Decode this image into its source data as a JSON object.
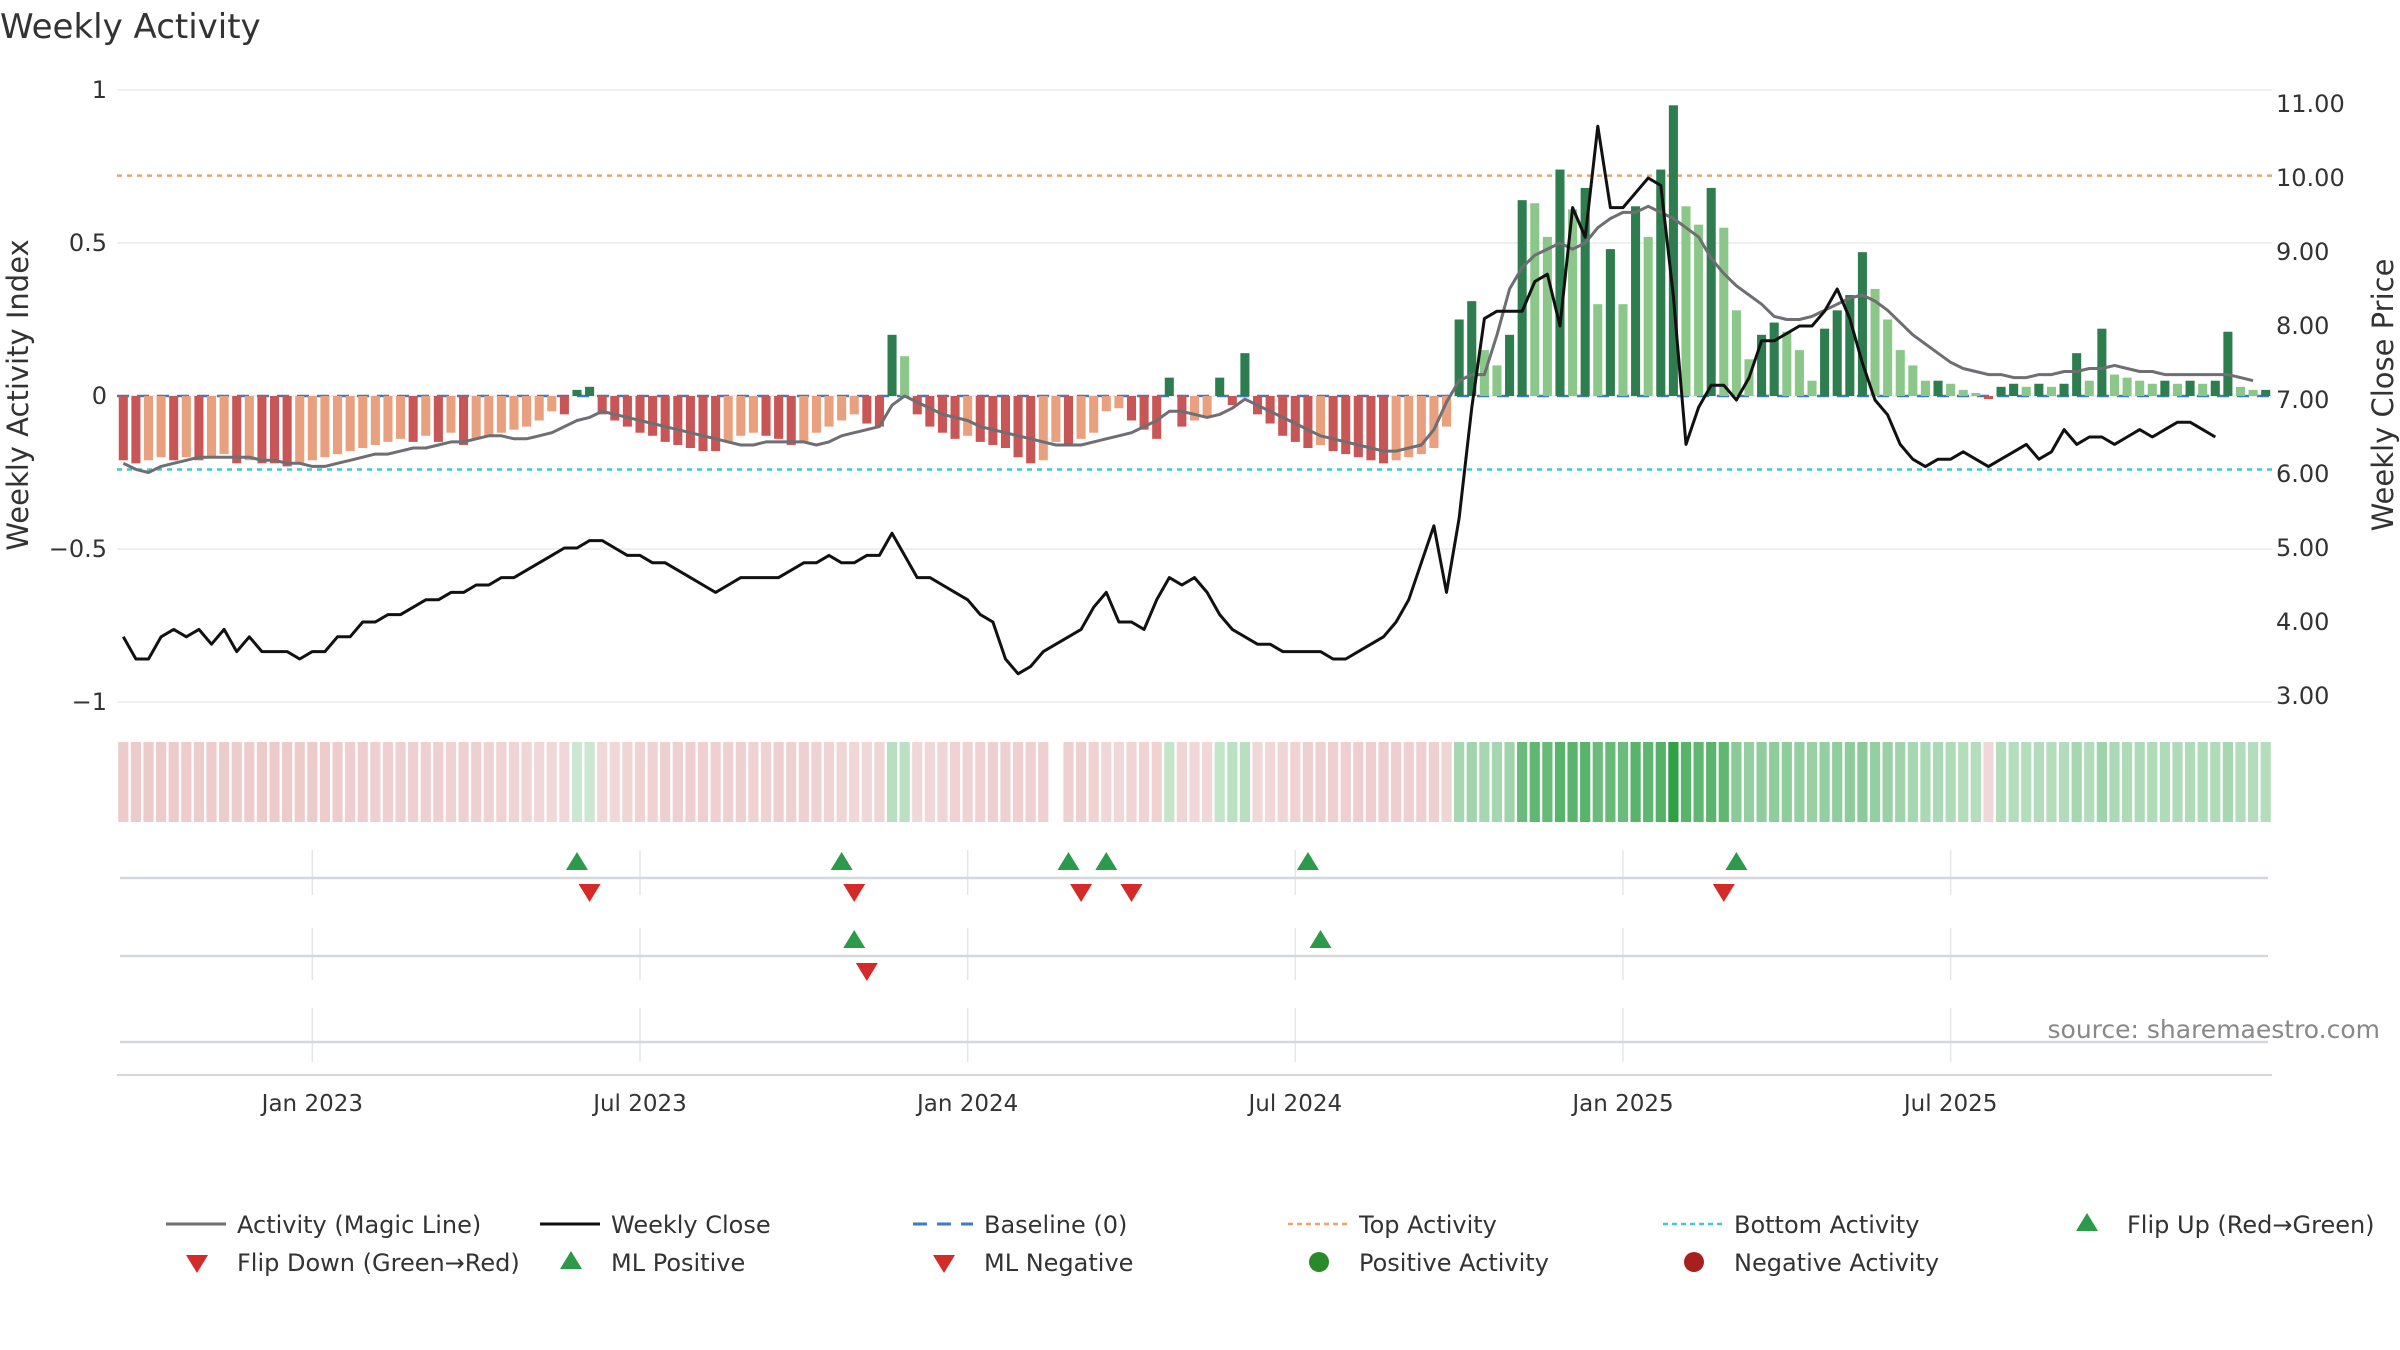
{
  "chart_data": {
    "type": "bar",
    "title": "Weekly Activity",
    "ylabel": "Weekly Activity Index",
    "y2label": "Weekly Close Price",
    "source": "source: sharemaestro.com",
    "ylim": [
      -1,
      1
    ],
    "y2lim": [
      3.0,
      11.0
    ],
    "y_ticks": [
      {
        "value": 1,
        "label": "1"
      },
      {
        "value": 0.5,
        "label": "0.5"
      },
      {
        "value": 0,
        "label": "0"
      },
      {
        "value": -0.5,
        "label": "−0.5"
      },
      {
        "value": -1,
        "label": "−1"
      }
    ],
    "y2_ticks": [
      "3.00",
      "4.00",
      "5.00",
      "6.00",
      "7.00",
      "8.00",
      "9.00",
      "10.00",
      "11.00"
    ],
    "x_ticks": [
      {
        "week": 15,
        "label": "Jan 2023"
      },
      {
        "week": 41,
        "label": "Jul 2023"
      },
      {
        "week": 67,
        "label": "Jan 2024"
      },
      {
        "week": 93,
        "label": "Jul 2024"
      },
      {
        "week": 119,
        "label": "Jan 2025"
      },
      {
        "week": 145,
        "label": "Jul 2025"
      }
    ],
    "top_activity": 0.72,
    "bottom_activity": -0.24,
    "baseline": 0,
    "activity": [
      -0.21,
      -0.22,
      -0.21,
      -0.2,
      -0.21,
      -0.2,
      -0.21,
      -0.2,
      -0.19,
      -0.22,
      -0.21,
      -0.22,
      -0.22,
      -0.23,
      -0.22,
      -0.21,
      -0.2,
      -0.19,
      -0.18,
      -0.17,
      -0.16,
      -0.15,
      -0.14,
      -0.15,
      -0.13,
      -0.15,
      -0.12,
      -0.16,
      -0.14,
      -0.13,
      -0.12,
      -0.11,
      -0.1,
      -0.08,
      -0.05,
      -0.06,
      0.02,
      0.03,
      -0.06,
      -0.08,
      -0.1,
      -0.12,
      -0.13,
      -0.15,
      -0.16,
      -0.17,
      -0.18,
      -0.18,
      -0.15,
      -0.13,
      -0.12,
      -0.13,
      -0.14,
      -0.16,
      -0.15,
      -0.12,
      -0.1,
      -0.08,
      -0.06,
      -0.09,
      -0.1,
      0.2,
      0.13,
      -0.06,
      -0.1,
      -0.12,
      -0.14,
      -0.13,
      -0.15,
      -0.16,
      -0.17,
      -0.2,
      -0.22,
      -0.21,
      -0.15,
      -0.16,
      -0.14,
      -0.12,
      -0.05,
      -0.04,
      -0.08,
      -0.11,
      -0.14,
      0.06,
      -0.1,
      -0.08,
      -0.07,
      0.06,
      -0.03,
      0.14,
      -0.06,
      -0.09,
      -0.13,
      -0.15,
      -0.17,
      -0.16,
      -0.18,
      -0.19,
      -0.2,
      -0.21,
      -0.22,
      -0.21,
      -0.2,
      -0.19,
      -0.17,
      -0.1,
      0.25,
      0.31,
      0.15,
      0.1,
      0.2,
      0.64,
      0.63,
      0.52,
      0.74,
      0.61,
      0.68,
      0.3,
      0.48,
      0.3,
      0.62,
      0.52,
      0.74,
      0.95,
      0.62,
      0.56,
      0.68,
      0.55,
      0.28,
      0.12,
      0.2,
      0.24,
      0.21,
      0.15,
      0.05,
      0.22,
      0.28,
      0.33,
      0.47,
      0.35,
      0.25,
      0.15,
      0.1,
      0.05,
      0.05,
      0.04,
      0.02,
      0.01,
      -0.01,
      0.03,
      0.04,
      0.03,
      0.04,
      0.03,
      0.04,
      0.14,
      0.05,
      0.22,
      0.07,
      0.06,
      0.05,
      0.04,
      0.05,
      0.04,
      0.05,
      0.04,
      0.05,
      0.21,
      0.03,
      0.02,
      0.02
    ],
    "magic_line": [
      -0.22,
      -0.24,
      -0.25,
      -0.23,
      -0.22,
      -0.21,
      -0.2,
      -0.2,
      -0.2,
      -0.2,
      -0.2,
      -0.21,
      -0.21,
      -0.22,
      -0.22,
      -0.23,
      -0.23,
      -0.22,
      -0.21,
      -0.2,
      -0.19,
      -0.19,
      -0.18,
      -0.17,
      -0.17,
      -0.16,
      -0.15,
      -0.15,
      -0.14,
      -0.13,
      -0.13,
      -0.14,
      -0.14,
      -0.13,
      -0.12,
      -0.1,
      -0.08,
      -0.07,
      -0.05,
      -0.06,
      -0.07,
      -0.08,
      -0.09,
      -0.1,
      -0.11,
      -0.12,
      -0.13,
      -0.14,
      -0.15,
      -0.16,
      -0.16,
      -0.15,
      -0.15,
      -0.15,
      -0.15,
      -0.16,
      -0.15,
      -0.13,
      -0.12,
      -0.11,
      -0.1,
      -0.03,
      0.0,
      -0.02,
      -0.04,
      -0.06,
      -0.07,
      -0.08,
      -0.1,
      -0.11,
      -0.12,
      -0.13,
      -0.14,
      -0.15,
      -0.16,
      -0.16,
      -0.16,
      -0.15,
      -0.14,
      -0.13,
      -0.12,
      -0.1,
      -0.08,
      -0.05,
      -0.05,
      -0.06,
      -0.07,
      -0.06,
      -0.04,
      -0.01,
      -0.03,
      -0.05,
      -0.07,
      -0.09,
      -0.11,
      -0.13,
      -0.14,
      -0.15,
      -0.16,
      -0.17,
      -0.18,
      -0.18,
      -0.17,
      -0.16,
      -0.11,
      -0.02,
      0.05,
      0.07,
      0.07,
      0.2,
      0.35,
      0.42,
      0.46,
      0.48,
      0.5,
      0.48,
      0.5,
      0.55,
      0.58,
      0.6,
      0.6,
      0.62,
      0.6,
      0.58,
      0.55,
      0.52,
      0.45,
      0.4,
      0.36,
      0.33,
      0.3,
      0.26,
      0.25,
      0.25,
      0.26,
      0.28,
      0.3,
      0.32,
      0.33,
      0.31,
      0.28,
      0.24,
      0.2,
      0.17,
      0.14,
      0.11,
      0.09,
      0.08,
      0.07,
      0.07,
      0.06,
      0.06,
      0.07,
      0.07,
      0.08,
      0.08,
      0.09,
      0.09,
      0.1,
      0.09,
      0.08,
      0.08,
      0.07,
      0.07,
      0.07,
      0.07,
      0.07,
      0.07,
      0.06,
      0.05
    ],
    "close": [
      3.8,
      3.5,
      3.5,
      3.8,
      3.9,
      3.8,
      3.9,
      3.7,
      3.9,
      3.6,
      3.8,
      3.6,
      3.6,
      3.6,
      3.5,
      3.6,
      3.6,
      3.8,
      3.8,
      4.0,
      4.0,
      4.1,
      4.1,
      4.2,
      4.3,
      4.3,
      4.4,
      4.4,
      4.5,
      4.5,
      4.6,
      4.6,
      4.7,
      4.8,
      4.9,
      5.0,
      5.0,
      5.1,
      5.1,
      5.0,
      4.9,
      4.9,
      4.8,
      4.8,
      4.7,
      4.6,
      4.5,
      4.4,
      4.5,
      4.6,
      4.6,
      4.6,
      4.6,
      4.7,
      4.8,
      4.8,
      4.9,
      4.8,
      4.8,
      4.9,
      4.9,
      5.2,
      4.9,
      4.6,
      4.6,
      4.5,
      4.4,
      4.3,
      4.1,
      4.0,
      3.5,
      3.3,
      3.4,
      3.6,
      3.7,
      3.8,
      3.9,
      4.2,
      4.4,
      4.0,
      4.0,
      3.9,
      4.3,
      4.6,
      4.5,
      4.6,
      4.4,
      4.1,
      3.9,
      3.8,
      3.7,
      3.7,
      3.6,
      3.6,
      3.6,
      3.6,
      3.5,
      3.5,
      3.6,
      3.7,
      3.8,
      4.0,
      4.3,
      4.8,
      5.3,
      4.4,
      5.4,
      6.9,
      8.1,
      8.2,
      8.2,
      8.2,
      8.6,
      8.7,
      8.0,
      9.6,
      9.2,
      10.7,
      9.6,
      9.6,
      9.8,
      10.0,
      9.9,
      8.4,
      6.4,
      6.9,
      7.2,
      7.2,
      7.0,
      7.3,
      7.8,
      7.8,
      7.9,
      8.0,
      8.0,
      8.2,
      8.5,
      8.1,
      7.5,
      7.0,
      6.8,
      6.4,
      6.2,
      6.1,
      6.2,
      6.2,
      6.3,
      6.2,
      6.1,
      6.2,
      6.3,
      6.4,
      6.2,
      6.3,
      6.6,
      6.4,
      6.5,
      6.5,
      6.4,
      6.5,
      6.6,
      6.5,
      6.6,
      6.7,
      6.7,
      6.6,
      6.5
    ],
    "strip_intensity": [
      -0.22,
      -0.23,
      -0.23,
      -0.22,
      -0.22,
      -0.21,
      -0.21,
      -0.21,
      -0.2,
      -0.21,
      -0.21,
      -0.22,
      -0.22,
      -0.22,
      -0.22,
      -0.22,
      -0.21,
      -0.2,
      -0.19,
      -0.18,
      -0.17,
      -0.16,
      -0.15,
      -0.15,
      -0.14,
      -0.15,
      -0.13,
      -0.15,
      -0.14,
      -0.13,
      -0.12,
      -0.11,
      -0.1,
      -0.08,
      -0.05,
      -0.06,
      0.03,
      0.03,
      -0.06,
      -0.08,
      -0.1,
      -0.12,
      -0.13,
      -0.14,
      -0.15,
      -0.16,
      -0.17,
      -0.17,
      -0.15,
      -0.14,
      -0.13,
      -0.13,
      -0.14,
      -0.15,
      -0.15,
      -0.13,
      -0.11,
      -0.09,
      -0.07,
      -0.08,
      -0.09,
      0.12,
      0.1,
      -0.05,
      -0.08,
      -0.1,
      -0.12,
      -0.12,
      -0.13,
      -0.14,
      -0.15,
      -0.16,
      -0.17,
      -0.17,
      0,
      -0.15,
      -0.14,
      -0.13,
      -0.08,
      -0.07,
      -0.09,
      -0.11,
      -0.13,
      0.06,
      -0.1,
      -0.08,
      -0.07,
      0.06,
      0.1,
      0.12,
      -0.06,
      -0.08,
      -0.1,
      -0.12,
      -0.14,
      -0.15,
      -0.16,
      -0.17,
      -0.18,
      -0.18,
      -0.19,
      -0.18,
      -0.17,
      -0.16,
      -0.15,
      -0.1,
      0.2,
      0.24,
      0.2,
      0.22,
      0.25,
      0.5,
      0.55,
      0.52,
      0.6,
      0.58,
      0.6,
      0.5,
      0.52,
      0.5,
      0.6,
      0.56,
      0.62,
      0.8,
      0.6,
      0.55,
      0.58,
      0.55,
      0.35,
      0.3,
      0.32,
      0.33,
      0.32,
      0.3,
      0.28,
      0.3,
      0.32,
      0.33,
      0.34,
      0.3,
      0.28,
      0.25,
      0.2,
      0.18,
      0.18,
      0.16,
      0.14,
      0.14,
      -0.05,
      0.14,
      0.14,
      0.14,
      0.15,
      0.14,
      0.15,
      0.2,
      0.15,
      0.25,
      0.18,
      0.17,
      0.17,
      0.16,
      0.16,
      0.16,
      0.16,
      0.16,
      0.16,
      0.2,
      0.15,
      0.14,
      0.14
    ],
    "flip_up_weeks": [
      36,
      57,
      75,
      78,
      94,
      128
    ],
    "flip_down_weeks": [
      37,
      58,
      76,
      80,
      127
    ],
    "ml_positive_weeks": [
      58,
      95
    ],
    "ml_negative_weeks": [
      59
    ],
    "legend": [
      {
        "key": "magic",
        "label": "Activity (Magic Line)"
      },
      {
        "key": "close",
        "label": "Weekly Close"
      },
      {
        "key": "baseline",
        "label": "Baseline (0)"
      },
      {
        "key": "top",
        "label": "Top Activity"
      },
      {
        "key": "bottom",
        "label": "Bottom Activity"
      },
      {
        "key": "flipup",
        "label": "Flip Up (Red→Green)"
      },
      {
        "key": "flipdown",
        "label": "Flip Down (Green→Red)"
      },
      {
        "key": "mlpos",
        "label": "ML Positive"
      },
      {
        "key": "mlneg",
        "label": "ML Negative"
      },
      {
        "key": "posact",
        "label": "Positive Activity"
      },
      {
        "key": "negact",
        "label": "Negative Activity"
      }
    ],
    "colors": {
      "pos_strong": "#2e7d4f",
      "pos_light": "#8cc78a",
      "neg_strong": "#c85656",
      "neg_light": "#e8a07e",
      "magic": "#6e6e73",
      "close": "#111111",
      "baseline": "#3b7bbf",
      "top": "#e8a66a",
      "bottom": "#3ec9d6",
      "flip_up": "#2b9a4a",
      "flip_down": "#d42a2a",
      "pos_dot": "#2a8a2a",
      "neg_dot": "#a81f1f"
    }
  }
}
